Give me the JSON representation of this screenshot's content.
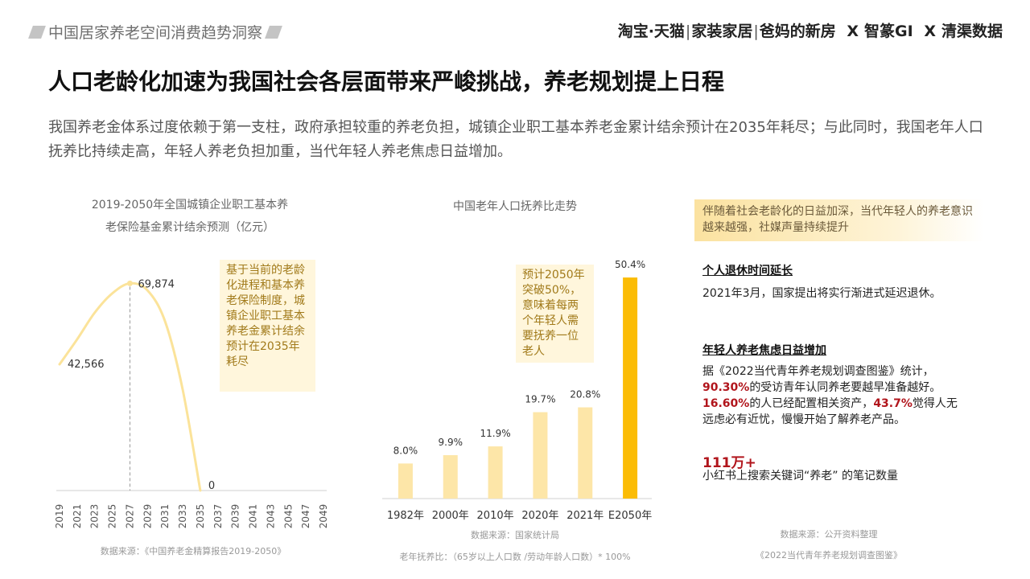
{
  "header": {
    "section_title": "中国居家养老空间消费趋势洞察",
    "brand_taobao": "淘宝·天猫",
    "brand_home": "家装家居",
    "brand_parents": "爸妈的新房",
    "times": "X",
    "brand_zhizhuan": "智篆GI",
    "brand_qingqu": "清渠数据"
  },
  "headline": "人口老龄化加速为我国社会各层面带来严峻挑战，养老规划提上日程",
  "intro": "我国养老金体系过度依赖于第一支柱，政府承担较重的养老负担，城镇企业职工基本养老金累计结余预计在2035年耗尽；与此同时，我国老年人口抚养比持续走高，年轻人养老负担加重，当代年轻人养老焦虑日益增加。",
  "chart_data": [
    {
      "type": "line",
      "title_line1": "2019-2050年全国城镇企业职工基本养",
      "title_line2": "老保险基金累计结余预测（亿元）",
      "x_ticks": [
        "2019",
        "2021",
        "2023",
        "2025",
        "2027",
        "2029",
        "2031",
        "2033",
        "2035",
        "2037",
        "2039",
        "2041",
        "2043",
        "2045",
        "2047",
        "2049"
      ],
      "points": [
        {
          "x": 2019,
          "y": 42566
        },
        {
          "x": 2021,
          "y": 51000
        },
        {
          "x": 2023,
          "y": 60000
        },
        {
          "x": 2025,
          "y": 66500
        },
        {
          "x": 2027,
          "y": 69874
        },
        {
          "x": 2029,
          "y": 67500
        },
        {
          "x": 2031,
          "y": 57000
        },
        {
          "x": 2033,
          "y": 34000
        },
        {
          "x": 2035,
          "y": 0
        }
      ],
      "labels": [
        {
          "x": 2019,
          "text": "42,566"
        },
        {
          "x": 2027,
          "text": "69,874"
        },
        {
          "x": 2035,
          "text": "0"
        }
      ],
      "xlim": [
        2019,
        2049
      ],
      "ylim": [
        0,
        80000
      ],
      "color": "#fbe39a",
      "note": "基于当前的老龄化进程和基本养老保险制度，城镇企业职工基本养老金累计结余预计在2035年耗尽",
      "source": "数据来源：《中国养老金精算报告2019-2050》"
    },
    {
      "type": "bar",
      "title": "中国老年人口抚养比走势",
      "categories": [
        "1982年",
        "2000年",
        "2010年",
        "2020年",
        "2021年",
        "E2050年"
      ],
      "values": [
        8.0,
        9.9,
        11.9,
        19.7,
        20.8,
        50.4
      ],
      "value_labels": [
        "8.0%",
        "9.9%",
        "11.9%",
        "19.7%",
        "20.8%",
        "50.4%"
      ],
      "ylim": [
        0,
        55
      ],
      "colors": [
        "#fde6a8",
        "#fde6a8",
        "#fde6a8",
        "#fde6a8",
        "#fde6a8",
        "#fbbc05"
      ],
      "note": "预计2050年突破50%，意味着每两个年轻人需要抚养一位老人",
      "source": "数据来源：国家统计局",
      "formula": "老年抚养比：（65岁以上人口数 /劳动年龄人口数）* 100%"
    }
  ],
  "right_panel": {
    "banner": "伴随着社会老龄化的日益加深，当代年轻人的养老意识越来越强，社媒声量持续提升",
    "sec1_title": "个人退休时间延长",
    "sec1_text": "2021年3月，国家提出将实行渐进式延迟退休。",
    "sec2_title": "年轻人养老焦虑日益增加",
    "sec2_p1": "据《2022当代青年养老规划调查图鉴》统计，",
    "sec2_stat1": "90.30%",
    "sec2_p2": "的受访青年认同养老要越早准备越好。",
    "sec2_stat2": "16.60%",
    "sec2_p3": "的人已经配置相关资产，",
    "sec2_stat3": "43.7%",
    "sec2_p4": "觉得人无远虑必有近忧，慢慢开始了解养老产品。",
    "stat_big": "111万+",
    "stat_desc": "小红书上搜索关键词“养老” 的笔记数量",
    "source_line1": "数据来源：公开资料整理",
    "source_line2": "《2022当代青年养老规划调查图鉴》"
  }
}
